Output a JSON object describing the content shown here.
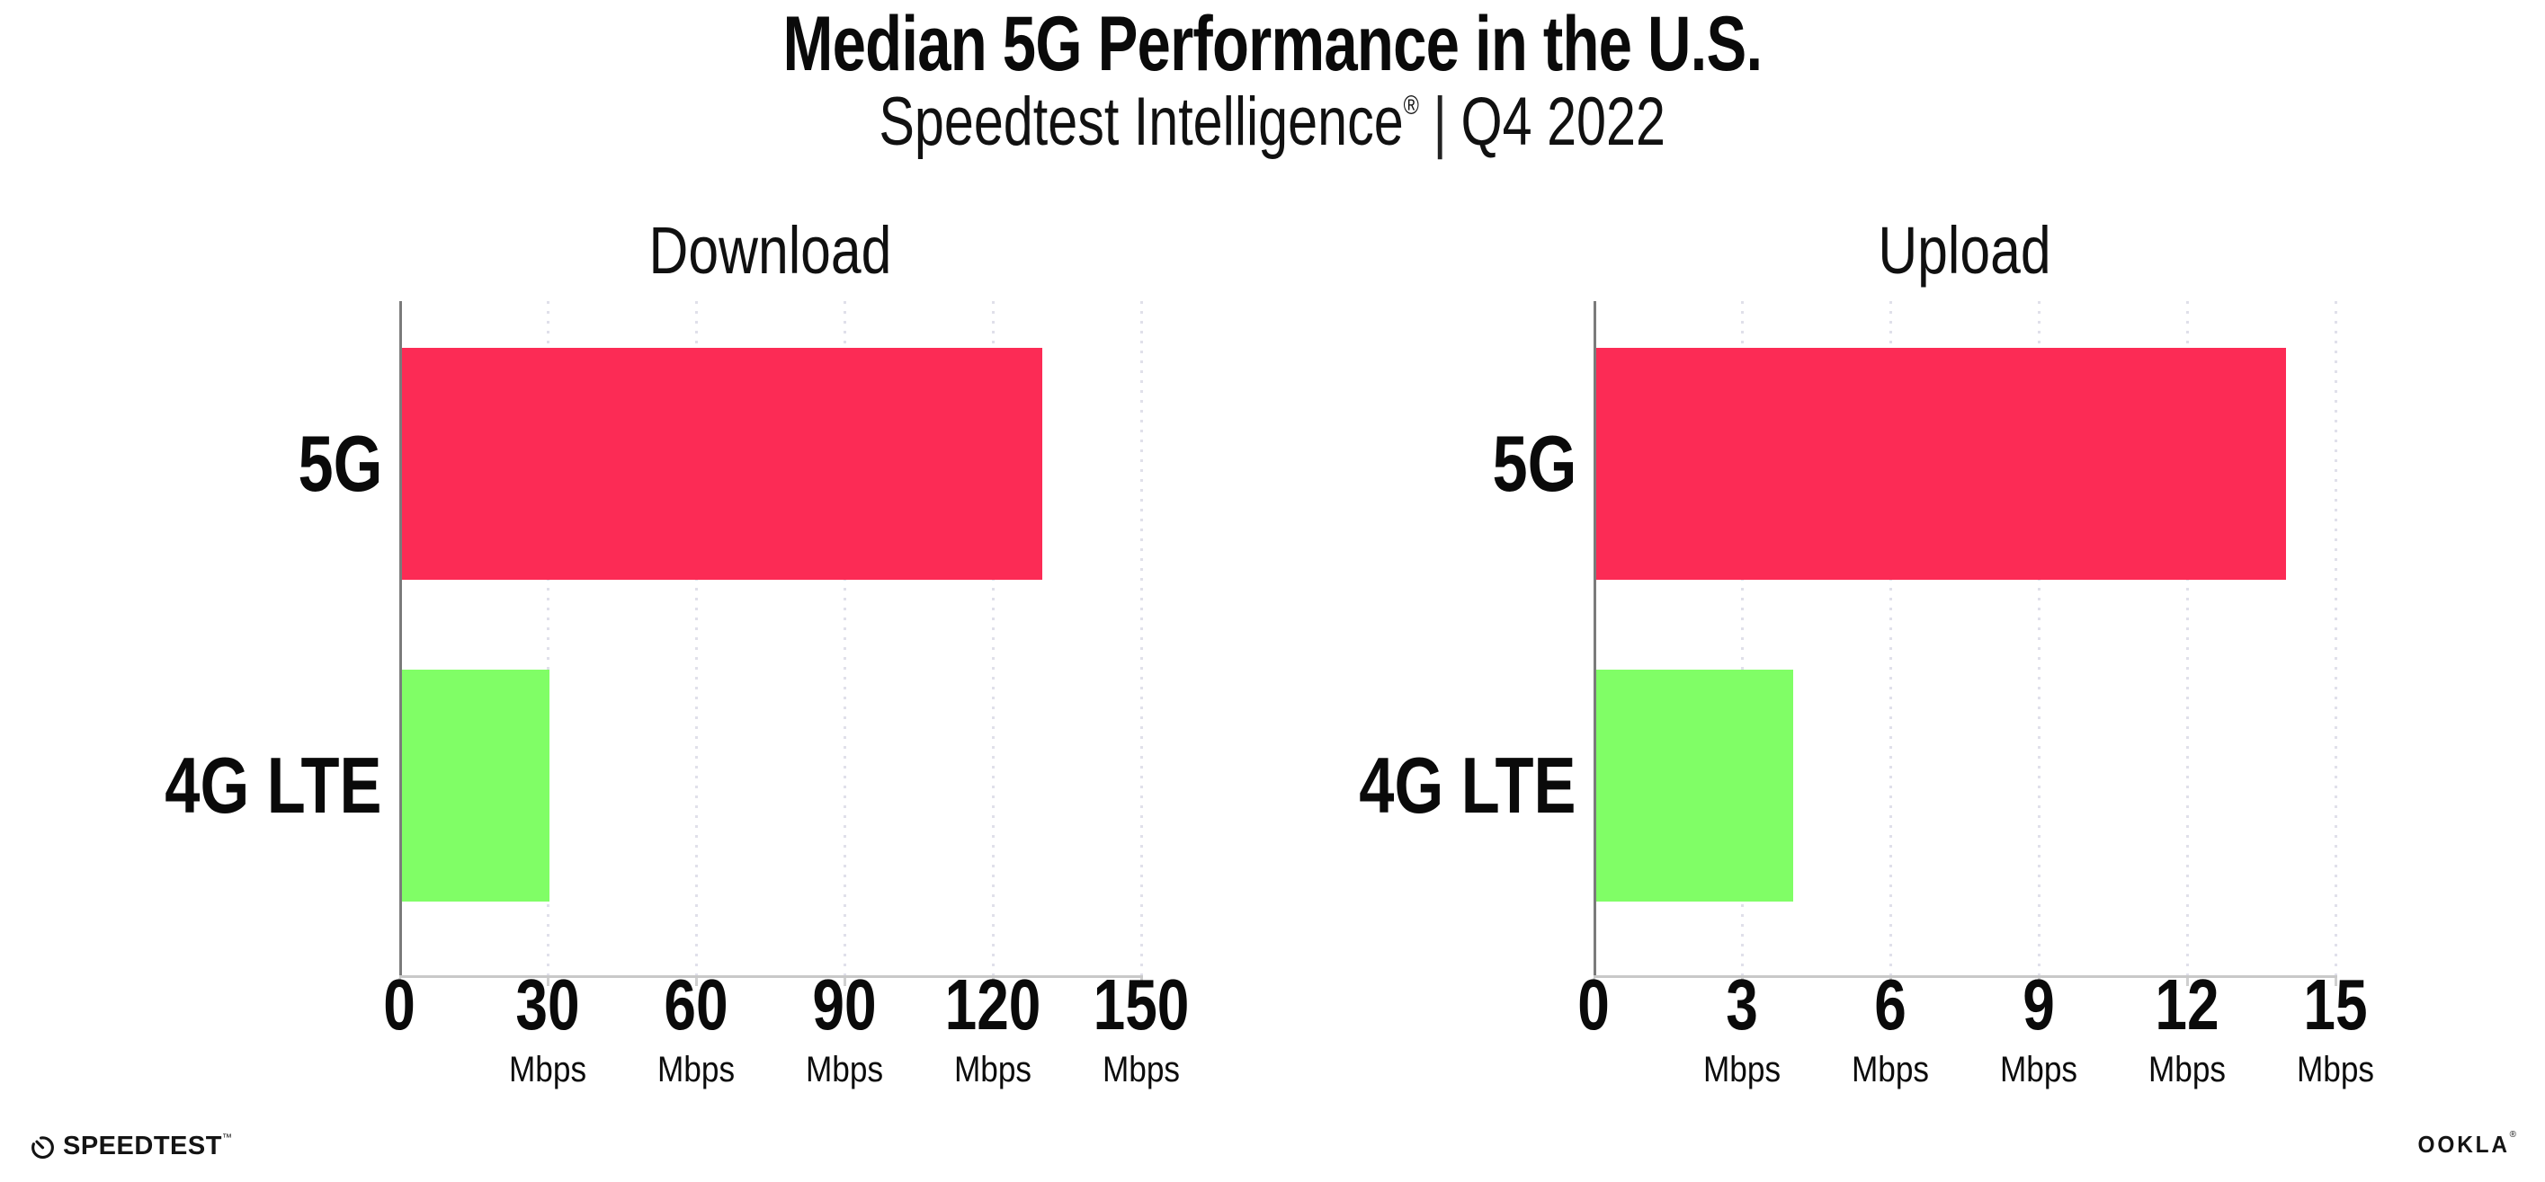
{
  "header": {
    "title": "Median 5G Performance in the U.S.",
    "subtitle": {
      "brand": "Speedtest Intelligence",
      "reg_mark": "®",
      "separator": "|",
      "period": "Q4 2022"
    }
  },
  "chart_data": [
    {
      "type": "bar",
      "orientation": "horizontal",
      "title": "Download",
      "categories": [
        "5G",
        "4G LTE"
      ],
      "values": [
        130,
        30
      ],
      "unit": "Mbps",
      "xlabel": "",
      "ylabel": "",
      "xlim": [
        0,
        150
      ],
      "xticks": [
        0,
        30,
        60,
        90,
        120,
        150
      ],
      "bar_colors": [
        "#fc2b55",
        "#80fe66"
      ],
      "grid": "dotted-vertical-light",
      "legend": "none"
    },
    {
      "type": "bar",
      "orientation": "horizontal",
      "title": "Upload",
      "categories": [
        "5G",
        "4G LTE"
      ],
      "values": [
        14,
        4
      ],
      "unit": "Mbps",
      "xlabel": "",
      "ylabel": "",
      "xlim": [
        0,
        15
      ],
      "xticks": [
        0,
        3,
        6,
        9,
        12,
        15
      ],
      "bar_colors": [
        "#fc2b55",
        "#80fe66"
      ],
      "grid": "dotted-vertical-light",
      "legend": "none"
    }
  ],
  "footer": {
    "speedtest": {
      "label": "SPEEDTEST",
      "mark": "™"
    },
    "ookla": {
      "label": "OOKLA",
      "mark": "®"
    }
  },
  "icons": {
    "speedtest_gauge": "gauge-icon"
  },
  "colors": {
    "bar_5g": "#fc2b55",
    "bar_4g_lte": "#80fe66",
    "gridline": "#e0e0ea",
    "y_axis": "#7b7b7b",
    "x_axis": "#c9c9c9",
    "text": "#0a0a0a",
    "background": "#ffffff"
  }
}
